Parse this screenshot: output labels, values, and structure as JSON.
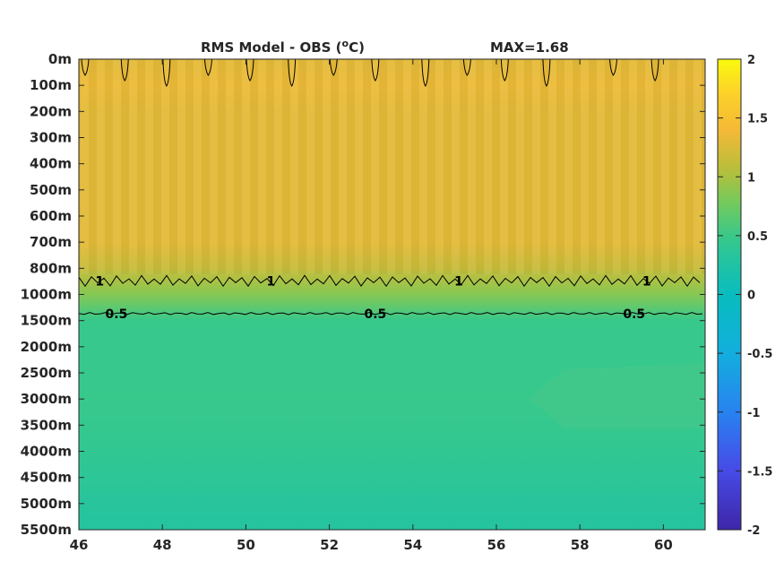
{
  "chart_data": {
    "type": "heatmap",
    "title": "RMS Model - OBS (",
    "title_sup": "o",
    "title_unit": "C)",
    "max_label": "MAX=1.68",
    "x_ticks": [
      "46",
      "48",
      "50",
      "52",
      "54",
      "56",
      "58",
      "60"
    ],
    "x_tick_values": [
      46,
      48,
      50,
      52,
      54,
      56,
      58,
      60
    ],
    "xlim": [
      46,
      61
    ],
    "y_ticks": [
      "0m",
      "100m",
      "200m",
      "300m",
      "400m",
      "500m",
      "600m",
      "700m",
      "800m",
      "1000m",
      "1500m",
      "2000m",
      "2500m",
      "3000m",
      "3500m",
      "4000m",
      "4500m",
      "5000m",
      "5500m"
    ],
    "colorbar": {
      "ticks": [
        "2",
        "1.5",
        "1",
        "0.5",
        "0",
        "-0.5",
        "-1",
        "-1.5",
        "-2"
      ],
      "tick_values": [
        2,
        1.5,
        1,
        0.5,
        0,
        -0.5,
        -1,
        -1.5,
        -2
      ],
      "range": [
        -2,
        2
      ],
      "colormap": "parula"
    },
    "depth_profile": [
      {
        "depth": "0m",
        "value": 1.3
      },
      {
        "depth": "100m",
        "value": 1.35
      },
      {
        "depth": "200m",
        "value": 1.3
      },
      {
        "depth": "300m",
        "value": 1.3
      },
      {
        "depth": "400m",
        "value": 1.3
      },
      {
        "depth": "500m",
        "value": 1.3
      },
      {
        "depth": "600m",
        "value": 1.3
      },
      {
        "depth": "700m",
        "value": 1.3
      },
      {
        "depth": "800m",
        "value": 1.15
      },
      {
        "depth": "1000m",
        "value": 0.85
      },
      {
        "depth": "1500m",
        "value": 0.48
      },
      {
        "depth": "2000m",
        "value": 0.47
      },
      {
        "depth": "2500m",
        "value": 0.47
      },
      {
        "depth": "3000m",
        "value": 0.48
      },
      {
        "depth": "3500m",
        "value": 0.46
      },
      {
        "depth": "4000m",
        "value": 0.42
      },
      {
        "depth": "4500m",
        "value": 0.38
      },
      {
        "depth": "5000m",
        "value": 0.33
      },
      {
        "depth": "5500m",
        "value": 0.3
      }
    ],
    "contours": [
      {
        "level": "1",
        "label_x": [
          46.5,
          50.6,
          55.1,
          59.6
        ]
      },
      {
        "level": "0.5",
        "label_x": [
          46.9,
          53.1,
          59.3
        ]
      }
    ]
  }
}
